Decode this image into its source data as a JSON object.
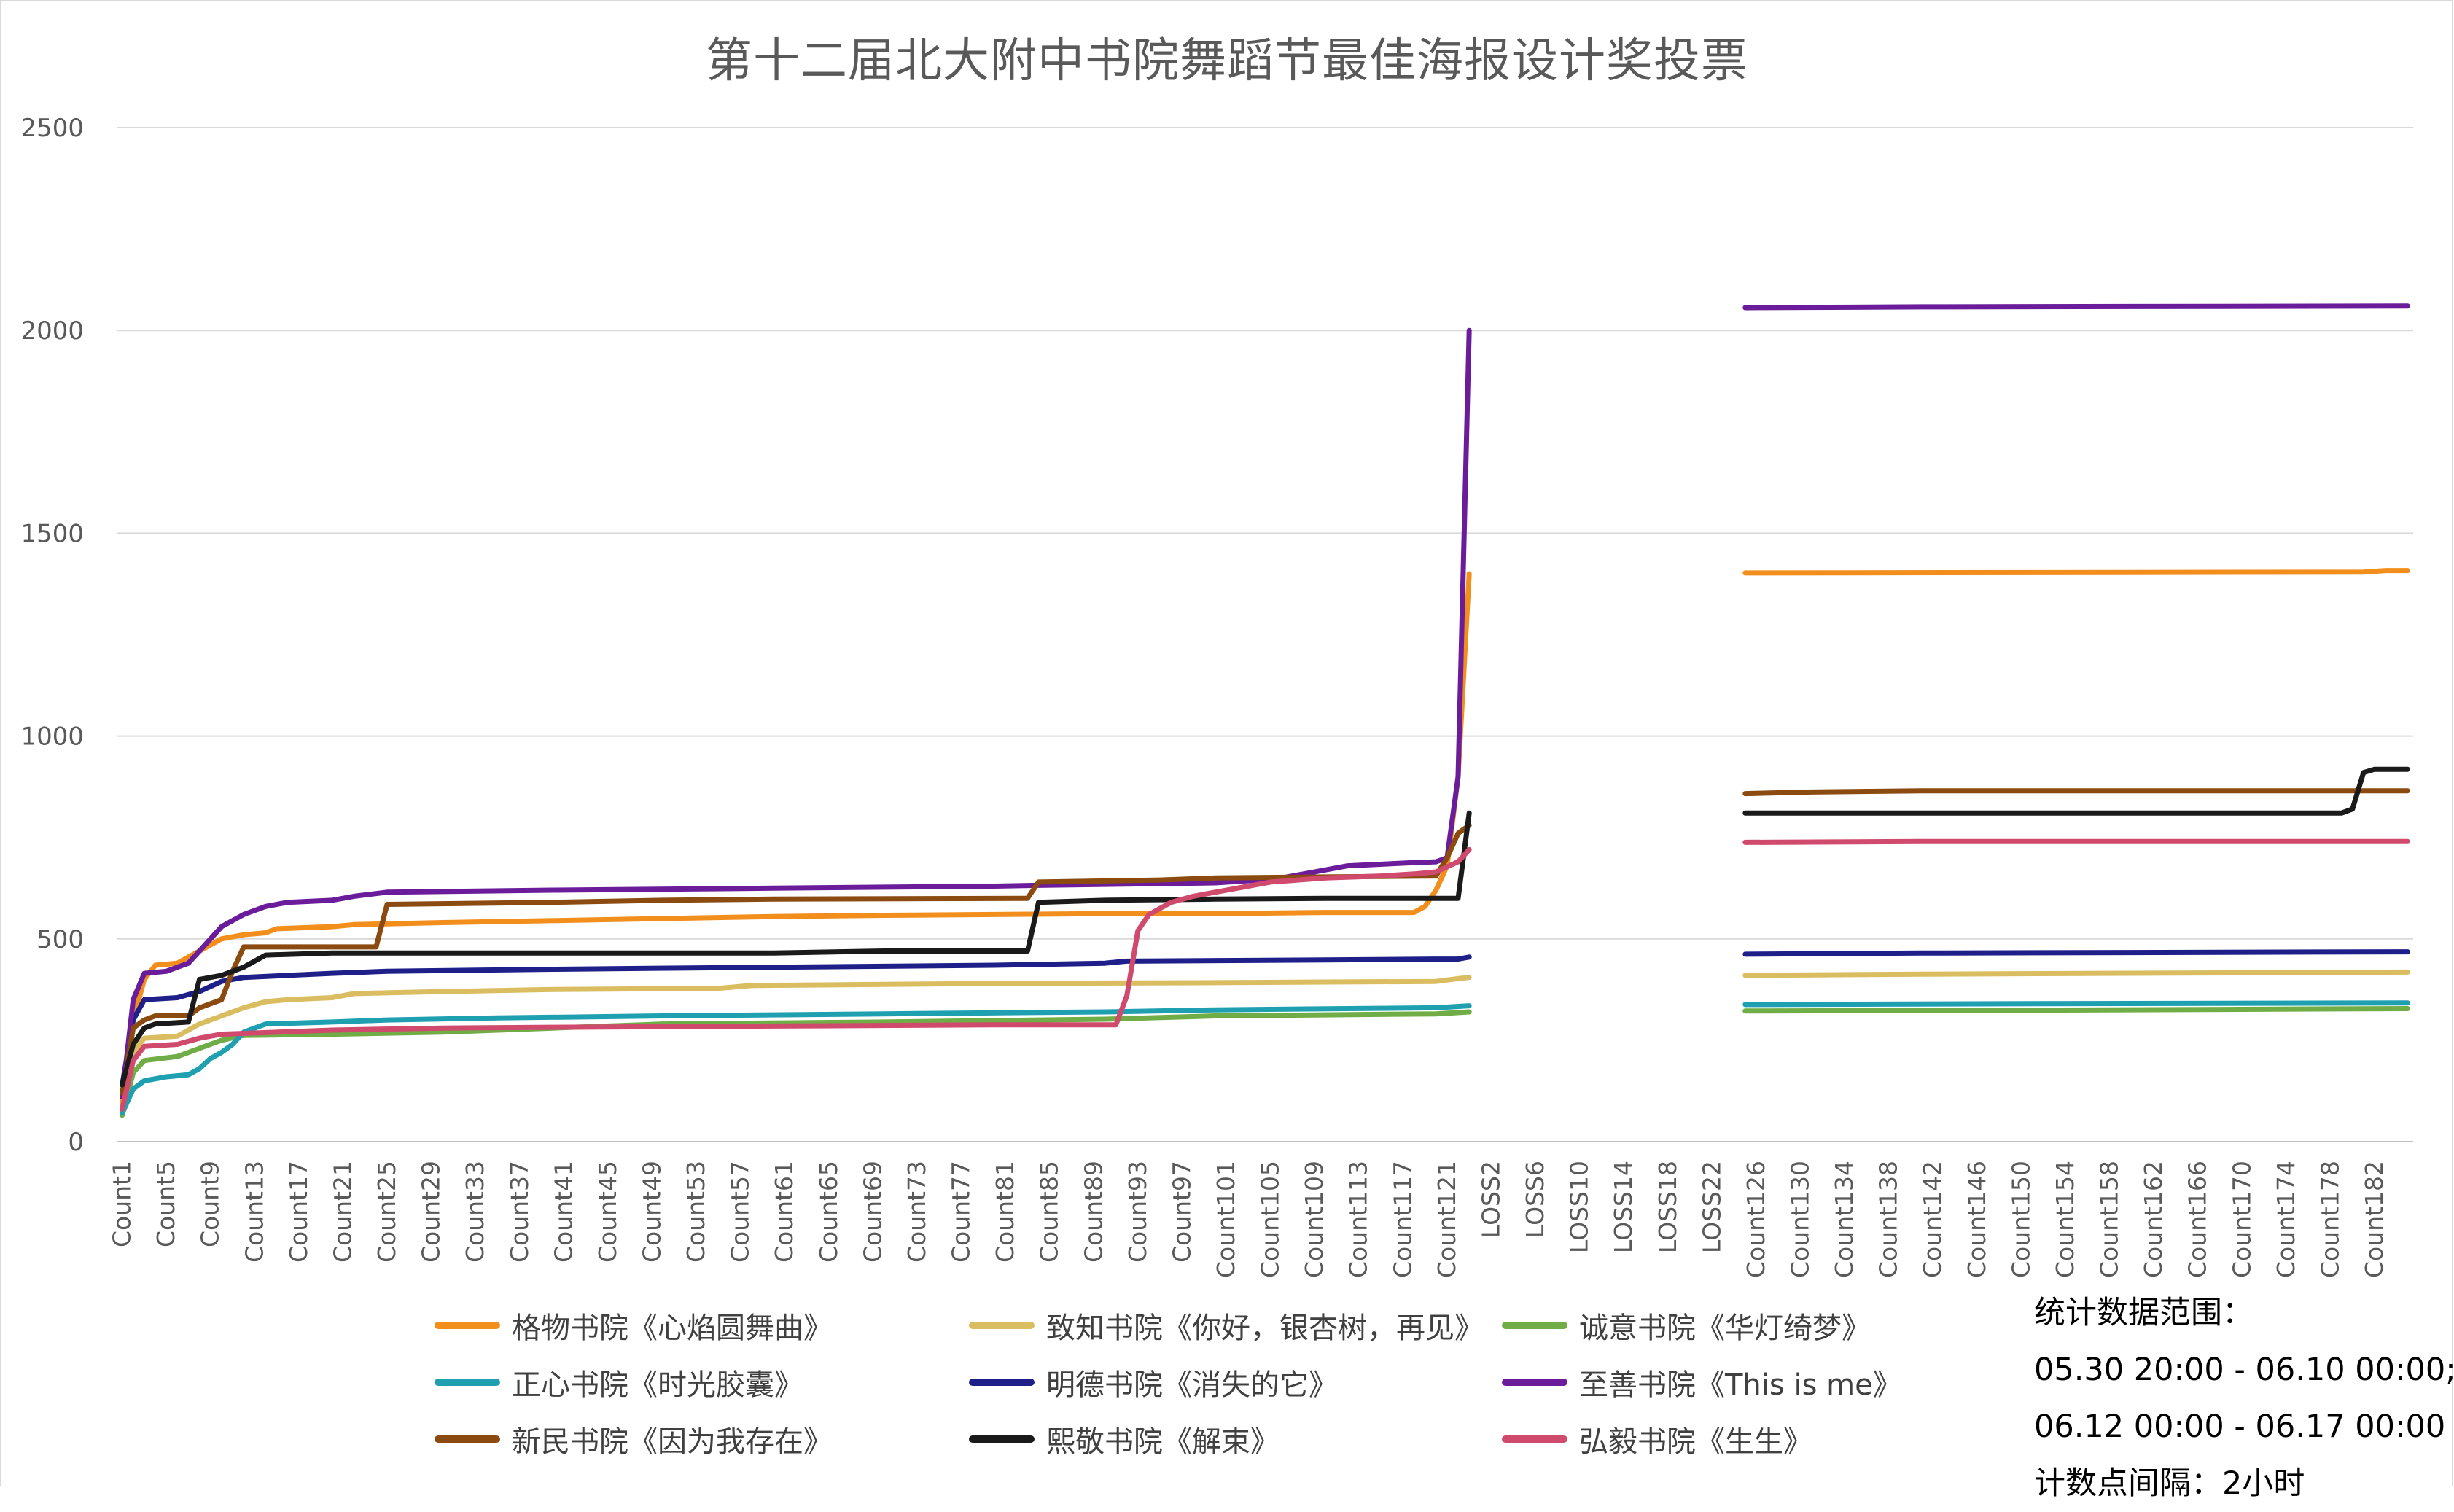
{
  "chart_data": {
    "type": "line",
    "title": "第十二届北大附中书院舞蹈节最佳海报设计奖投票",
    "ylim": [
      0,
      2500
    ],
    "y_ticks": [
      0,
      500,
      1000,
      1500,
      2000,
      2500
    ],
    "grid": true,
    "legend_position": "bottom",
    "categories_note": "x axis: Count1..Count123, LOSS1..LOSS24 (gap), Count124..Count184; every 4th label shown",
    "x_tick_labels": [
      "Count1",
      "Count5",
      "Count9",
      "Count13",
      "Count17",
      "Count21",
      "Count25",
      "Count29",
      "Count33",
      "Count37",
      "Count41",
      "Count45",
      "Count49",
      "Count53",
      "Count57",
      "Count61",
      "Count65",
      "Count69",
      "Count73",
      "Count77",
      "Count81",
      "Count85",
      "Count89",
      "Count93",
      "Count97",
      "Count101",
      "Count105",
      "Count109",
      "Count113",
      "Count117",
      "Count121",
      "LOSS2",
      "LOSS6",
      "LOSS10",
      "LOSS14",
      "LOSS18",
      "LOSS22",
      "Count126",
      "Count130",
      "Count134",
      "Count138",
      "Count142",
      "Count146",
      "Count150",
      "Count154",
      "Count158",
      "Count162",
      "Count166",
      "Count170",
      "Count174",
      "Count178",
      "Count182"
    ],
    "series": [
      {
        "name": "格物书院《心焰圆舞曲》",
        "color": "#f28e1c",
        "seg1": [
          [
            1,
            90
          ],
          [
            2,
            300
          ],
          [
            3,
            400
          ],
          [
            4,
            435
          ],
          [
            6,
            440
          ],
          [
            8,
            470
          ],
          [
            10,
            500
          ],
          [
            12,
            510
          ],
          [
            14,
            515
          ],
          [
            15,
            525
          ],
          [
            20,
            530
          ],
          [
            22,
            535
          ],
          [
            30,
            540
          ],
          [
            40,
            545
          ],
          [
            50,
            550
          ],
          [
            60,
            555
          ],
          [
            70,
            558
          ],
          [
            80,
            560
          ],
          [
            90,
            562
          ],
          [
            100,
            562
          ],
          [
            110,
            565
          ],
          [
            118,
            565
          ],
          [
            119,
            580
          ],
          [
            120,
            620
          ],
          [
            121,
            680
          ],
          [
            122,
            900
          ],
          [
            123,
            1400
          ]
        ],
        "seg2": [
          [
            124,
            1402
          ],
          [
            180,
            1404
          ],
          [
            182,
            1408
          ],
          [
            184,
            1408
          ]
        ]
      },
      {
        "name": "致知书院《你好，银杏树，再见》",
        "color": "#d9bd60",
        "seg1": [
          [
            1,
            80
          ],
          [
            2,
            220
          ],
          [
            3,
            255
          ],
          [
            6,
            260
          ],
          [
            8,
            290
          ],
          [
            10,
            310
          ],
          [
            12,
            330
          ],
          [
            14,
            345
          ],
          [
            16,
            350
          ],
          [
            20,
            355
          ],
          [
            22,
            365
          ],
          [
            30,
            370
          ],
          [
            40,
            375
          ],
          [
            55,
            378
          ],
          [
            58,
            385
          ],
          [
            80,
            390
          ],
          [
            100,
            392
          ],
          [
            120,
            395
          ],
          [
            122,
            402
          ],
          [
            123,
            405
          ]
        ],
        "seg2": [
          [
            124,
            410
          ],
          [
            140,
            413
          ],
          [
            184,
            418
          ]
        ]
      },
      {
        "name": "诚意书院《华灯绮梦》",
        "color": "#70ad47",
        "seg1": [
          [
            1,
            65
          ],
          [
            2,
            170
          ],
          [
            3,
            200
          ],
          [
            6,
            210
          ],
          [
            8,
            230
          ],
          [
            10,
            250
          ],
          [
            12,
            262
          ],
          [
            20,
            265
          ],
          [
            30,
            270
          ],
          [
            40,
            280
          ],
          [
            50,
            290
          ],
          [
            70,
            295
          ],
          [
            90,
            302
          ],
          [
            100,
            310
          ],
          [
            120,
            315
          ],
          [
            123,
            320
          ]
        ],
        "seg2": [
          [
            124,
            322
          ],
          [
            150,
            324
          ],
          [
            184,
            328
          ]
        ]
      },
      {
        "name": "正心书院《时光胶囊》",
        "color": "#1fa0b0",
        "seg1": [
          [
            1,
            70
          ],
          [
            2,
            130
          ],
          [
            3,
            150
          ],
          [
            5,
            160
          ],
          [
            7,
            165
          ],
          [
            8,
            180
          ],
          [
            9,
            205
          ],
          [
            10,
            220
          ],
          [
            11,
            240
          ],
          [
            12,
            270
          ],
          [
            14,
            290
          ],
          [
            20,
            295
          ],
          [
            25,
            300
          ],
          [
            35,
            305
          ],
          [
            50,
            310
          ],
          [
            70,
            315
          ],
          [
            90,
            320
          ],
          [
            100,
            325
          ],
          [
            120,
            330
          ],
          [
            123,
            335
          ]
        ],
        "seg2": [
          [
            124,
            338
          ],
          [
            150,
            340
          ],
          [
            184,
            342
          ]
        ]
      },
      {
        "name": "明德书院《消失的它》",
        "color": "#1f1f8a",
        "seg1": [
          [
            1,
            140
          ],
          [
            2,
            300
          ],
          [
            3,
            350
          ],
          [
            6,
            355
          ],
          [
            8,
            370
          ],
          [
            10,
            395
          ],
          [
            12,
            405
          ],
          [
            20,
            415
          ],
          [
            25,
            420
          ],
          [
            40,
            425
          ],
          [
            60,
            430
          ],
          [
            80,
            435
          ],
          [
            90,
            440
          ],
          [
            92,
            445
          ],
          [
            110,
            448
          ],
          [
            120,
            450
          ],
          [
            122,
            450
          ],
          [
            123,
            455
          ]
        ],
        "seg2": [
          [
            124,
            462
          ],
          [
            140,
            465
          ],
          [
            184,
            468
          ]
        ]
      },
      {
        "name": "至善书院《This is me》",
        "color": "#6a1c9a",
        "seg1": [
          [
            1,
            110
          ],
          [
            2,
            350
          ],
          [
            3,
            415
          ],
          [
            5,
            420
          ],
          [
            7,
            440
          ],
          [
            8,
            470
          ],
          [
            10,
            530
          ],
          [
            12,
            560
          ],
          [
            14,
            580
          ],
          [
            16,
            590
          ],
          [
            20,
            595
          ],
          [
            22,
            605
          ],
          [
            25,
            615
          ],
          [
            40,
            620
          ],
          [
            60,
            625
          ],
          [
            80,
            630
          ],
          [
            84,
            632
          ],
          [
            100,
            638
          ],
          [
            104,
            645
          ],
          [
            106,
            650
          ],
          [
            108,
            660
          ],
          [
            110,
            670
          ],
          [
            112,
            680
          ],
          [
            118,
            688
          ],
          [
            120,
            690
          ],
          [
            121,
            700
          ],
          [
            122,
            900
          ],
          [
            123,
            2000
          ]
        ],
        "seg2": [
          [
            124,
            2056
          ],
          [
            140,
            2058
          ],
          [
            184,
            2060
          ]
        ]
      },
      {
        "name": "新民书院《因为我存在》",
        "color": "#8a4a10",
        "seg1": [
          [
            1,
            120
          ],
          [
            2,
            280
          ],
          [
            3,
            300
          ],
          [
            4,
            310
          ],
          [
            7,
            310
          ],
          [
            8,
            330
          ],
          [
            10,
            350
          ],
          [
            11,
            420
          ],
          [
            12,
            480
          ],
          [
            24,
            480
          ],
          [
            25,
            585
          ],
          [
            40,
            590
          ],
          [
            50,
            595
          ],
          [
            60,
            598
          ],
          [
            83,
            600
          ],
          [
            84,
            640
          ],
          [
            95,
            645
          ],
          [
            100,
            650
          ],
          [
            120,
            655
          ],
          [
            121,
            700
          ],
          [
            122,
            760
          ],
          [
            123,
            780
          ]
        ],
        "seg2": [
          [
            124,
            858
          ],
          [
            130,
            862
          ],
          [
            140,
            865
          ],
          [
            184,
            865
          ]
        ]
      },
      {
        "name": "熙敬书院《解束》",
        "color": "#1a1a1a",
        "seg1": [
          [
            1,
            140
          ],
          [
            2,
            240
          ],
          [
            3,
            280
          ],
          [
            4,
            290
          ],
          [
            7,
            295
          ],
          [
            8,
            400
          ],
          [
            10,
            410
          ],
          [
            12,
            430
          ],
          [
            14,
            460
          ],
          [
            20,
            465
          ],
          [
            30,
            465
          ],
          [
            40,
            465
          ],
          [
            60,
            465
          ],
          [
            70,
            470
          ],
          [
            83,
            470
          ],
          [
            84,
            590
          ],
          [
            90,
            595
          ],
          [
            100,
            598
          ],
          [
            110,
            600
          ],
          [
            122,
            600
          ],
          [
            123,
            810
          ]
        ],
        "seg2": [
          [
            124,
            810
          ],
          [
            178,
            810
          ],
          [
            179,
            820
          ],
          [
            180,
            910
          ],
          [
            181,
            918
          ],
          [
            184,
            918
          ]
        ]
      },
      {
        "name": "弘毅书院《生生》",
        "color": "#d04a6e",
        "seg1": [
          [
            1,
            80
          ],
          [
            2,
            200
          ],
          [
            3,
            235
          ],
          [
            6,
            240
          ],
          [
            8,
            255
          ],
          [
            10,
            265
          ],
          [
            20,
            275
          ],
          [
            30,
            280
          ],
          [
            40,
            282
          ],
          [
            60,
            285
          ],
          [
            80,
            288
          ],
          [
            91,
            288
          ],
          [
            92,
            360
          ],
          [
            93,
            520
          ],
          [
            94,
            560
          ],
          [
            96,
            590
          ],
          [
            98,
            605
          ],
          [
            100,
            615
          ],
          [
            102,
            625
          ],
          [
            105,
            640
          ],
          [
            110,
            650
          ],
          [
            115,
            655
          ],
          [
            118,
            660
          ],
          [
            120,
            665
          ],
          [
            122,
            690
          ],
          [
            123,
            720
          ]
        ],
        "seg2": [
          [
            124,
            738
          ],
          [
            140,
            740
          ],
          [
            184,
            740
          ]
        ]
      }
    ]
  },
  "legend_labels": [
    "格物书院《心焰圆舞曲》",
    "致知书院《你好，银杏树，再见》",
    "诚意书院《华灯绮梦》",
    "正心书院《时光胶囊》",
    "明德书院《消失的它》",
    "至善书院《This is me》",
    "新民书院《因为我存在》",
    "熙敬书院《解束》",
    "弘毅书院《生生》"
  ],
  "note": {
    "line1": "统计数据范围：",
    "line2": "05.30 20:00 - 06.10 00:00;",
    "line3": "06.12 00:00 - 06.17 00:00",
    "line4": "计数点间隔：2小时"
  }
}
